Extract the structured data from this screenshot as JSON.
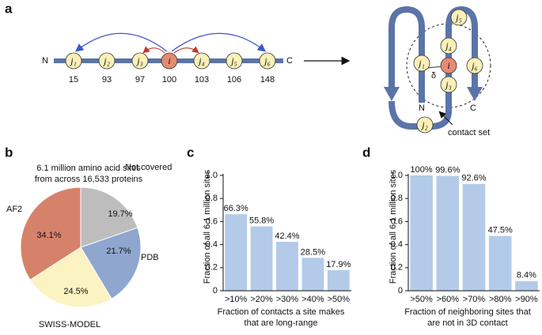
{
  "diagram": {
    "panel_label": "a",
    "chain": {
      "n_label": "N",
      "c_label": "C",
      "nodes": [
        {
          "label": "j₁",
          "position": "15"
        },
        {
          "label": "j₂",
          "position": "93"
        },
        {
          "label": "j₃",
          "position": "97"
        },
        {
          "label": "i",
          "position": "100"
        },
        {
          "label": "j₄",
          "position": "103"
        },
        {
          "label": "j₅",
          "position": "106"
        },
        {
          "label": "j₆",
          "position": "148"
        }
      ]
    },
    "structure": {
      "n_label": "N",
      "c_label": "C",
      "delta_label": "δ",
      "contact_label": "contact set"
    }
  },
  "chart_data": [
    {
      "type": "pie",
      "panel_label": "b",
      "subtitle_lines": [
        "6.1 million amino acid sites",
        "from across 16,533 proteins"
      ],
      "categories": [
        "Not covered",
        "PDB",
        "SWISS-MODEL",
        "AF2"
      ],
      "values": [
        19.7,
        21.7,
        24.5,
        34.1
      ],
      "value_labels": [
        "19.7%",
        "21.7%",
        "24.5%",
        "34.1%"
      ],
      "colors": [
        "#bdbdbd",
        "#8fa6cf",
        "#fbf3c2",
        "#d6826a"
      ]
    },
    {
      "type": "bar",
      "panel_label": "c",
      "ylabel": "Fraction of all 6.1 million sites",
      "xlabel_lines": [
        "Fraction of contacts a site makes",
        "that are long-range"
      ],
      "categories": [
        ">10%",
        ">20%",
        ">30%",
        ">40%",
        ">50%"
      ],
      "values": [
        0.663,
        0.558,
        0.424,
        0.285,
        0.179
      ],
      "value_labels": [
        "66.3%",
        "55.8%",
        "42.4%",
        "28.5%",
        "17.9%"
      ],
      "color": "#b3cbe8",
      "ylim": [
        0,
        1
      ],
      "yticks": [
        0,
        0.2,
        0.4,
        0.6,
        0.8,
        {
          "value": 1,
          "label": "1.0"
        }
      ]
    },
    {
      "type": "bar",
      "panel_label": "d",
      "ylabel": "Fraction of all 6.1 million sites",
      "xlabel_lines": [
        "Fraction of neighboring sites that",
        "are not in 3D contact"
      ],
      "categories": [
        ">50%",
        ">60%",
        ">70%",
        ">80%",
        ">90%"
      ],
      "values": [
        1.0,
        0.996,
        0.926,
        0.475,
        0.084
      ],
      "value_labels": [
        "100%",
        "99.6%",
        "92.6%",
        "47.5%",
        "8.4%"
      ],
      "color": "#b3cbe8",
      "ylim": [
        0,
        1
      ],
      "yticks": [
        0,
        0.2,
        0.4,
        0.6,
        0.8,
        {
          "value": 1,
          "label": "1.0"
        }
      ]
    }
  ]
}
